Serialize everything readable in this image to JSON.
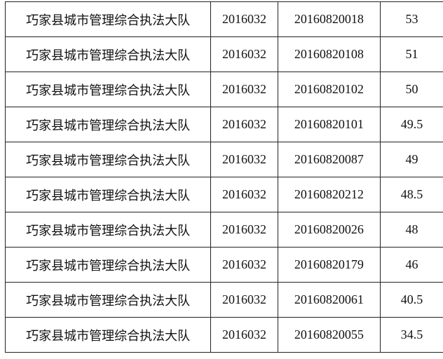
{
  "table": {
    "rows": [
      [
        "巧家县城市管理综合执法大队",
        "2016032",
        "20160820018",
        "53"
      ],
      [
        "巧家县城市管理综合执法大队",
        "2016032",
        "20160820108",
        "51"
      ],
      [
        "巧家县城市管理综合执法大队",
        "2016032",
        "20160820102",
        "50"
      ],
      [
        "巧家县城市管理综合执法大队",
        "2016032",
        "20160820101",
        "49.5"
      ],
      [
        "巧家县城市管理综合执法大队",
        "2016032",
        "20160820087",
        "49"
      ],
      [
        "巧家县城市管理综合执法大队",
        "2016032",
        "20160820212",
        "48.5"
      ],
      [
        "巧家县城市管理综合执法大队",
        "2016032",
        "20160820026",
        "48"
      ],
      [
        "巧家县城市管理综合执法大队",
        "2016032",
        "20160820179",
        "46"
      ],
      [
        "巧家县城市管理综合执法大队",
        "2016032",
        "20160820061",
        "40.5"
      ],
      [
        "巧家县城市管理综合执法大队",
        "2016032",
        "20160820055",
        "34.5"
      ]
    ]
  }
}
